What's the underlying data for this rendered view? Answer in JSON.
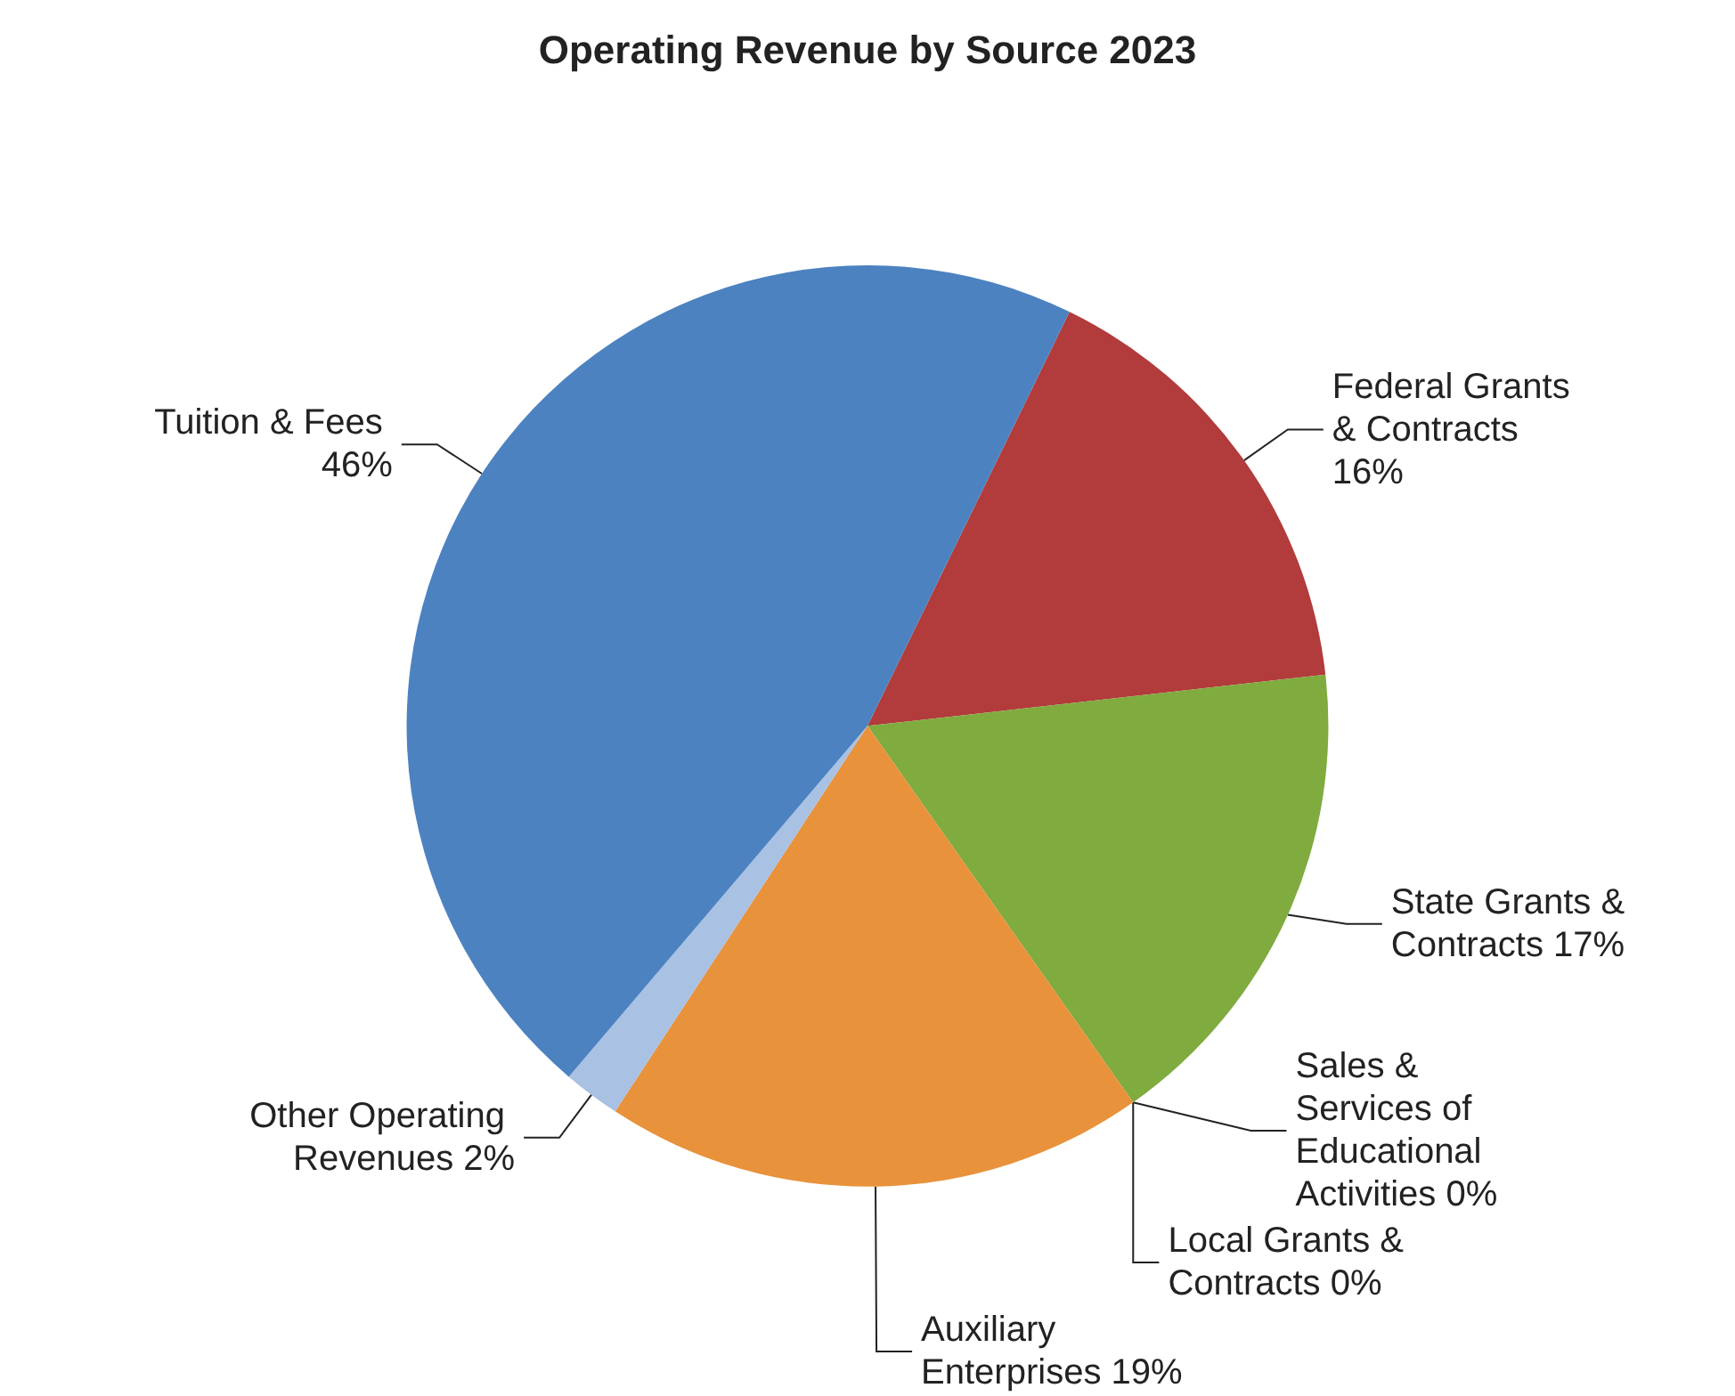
{
  "chart_data": {
    "type": "pie",
    "title": "Operating Revenue by Source 2023",
    "categories": [
      "Federal Grants & Contracts",
      "State Grants & Contracts",
      "Local Grants & Contracts",
      "Sales & Services of Educational Activities",
      "Auxiliary Enterprises",
      "Other Operating Revenues",
      "Tuition & Fees"
    ],
    "values": [
      16,
      17,
      0,
      0,
      19,
      2,
      46
    ],
    "value_labels": [
      "16%",
      "17%",
      "0%",
      "0%",
      "19%",
      "2%",
      "46%"
    ],
    "colors": [
      "#b23b3b",
      "#7fab3f",
      "#2f6f8f",
      "#27a3c4",
      "#e8923c",
      "#a9c1e3",
      "#4c82c0"
    ]
  }
}
